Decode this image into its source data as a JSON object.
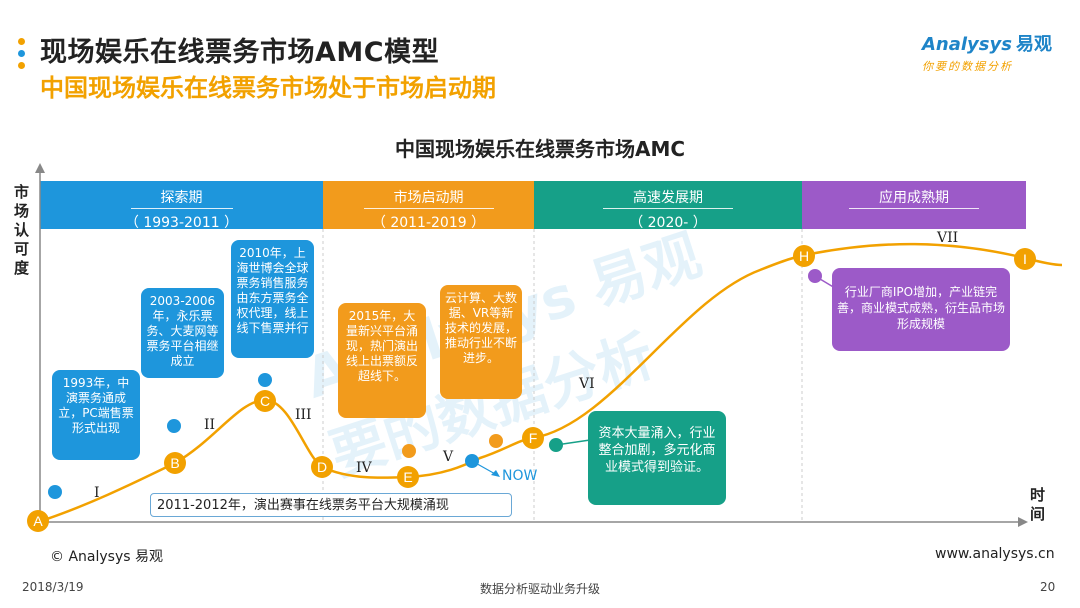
{
  "header": {
    "title": "现场娱乐在线票务市场AMC模型",
    "subtitle": "中国现场娱乐在线票务市场处于市场启动期",
    "logo_en": "Analysys",
    "logo_cn": "易观",
    "logo_tagline": "你要的数据分析",
    "dot_colors": [
      "#f2a100",
      "#1e96dc",
      "#f2a100"
    ]
  },
  "chart": {
    "title": "中国现场娱乐在线票务市场AMC",
    "y_axis_label": "市场认可度",
    "x_axis_label": "时间",
    "phases": [
      {
        "name": "探索期",
        "range": "（ 1993-2011 ）",
        "color": "#1e96dc"
      },
      {
        "name": "市场启动期",
        "range": "（ 2011-2019 ）",
        "color": "#f29b1c"
      },
      {
        "name": "高速发展期",
        "range": "（  2020-  ）",
        "color": "#16a088"
      },
      {
        "name": "应用成熟期",
        "range": "",
        "color": "#9c5ac8"
      }
    ],
    "points": [
      "A",
      "B",
      "C",
      "D",
      "E",
      "F",
      "H",
      "I"
    ],
    "stages": [
      "I",
      "II",
      "III",
      "IV",
      "V",
      "VI",
      "VII"
    ],
    "callouts": [
      {
        "text": "1993年，中演票务通成立，PC端售票形式出现",
        "color": "#1e96dc"
      },
      {
        "text": "2003-2006年，永乐票务、大麦网等票务平台相继成立",
        "color": "#1e96dc"
      },
      {
        "text": "2010年，上海世博会全球票务销售服务由东方票务全权代理，线上线下售票并行",
        "color": "#1e96dc"
      },
      {
        "text": "2015年，大量新兴平台涌现，热门演出线上出票额反超线下。",
        "color": "#f29b1c"
      },
      {
        "text": "云计算、大数据、VR等新技术的发展，推动行业不断进步。",
        "color": "#f29b1c"
      },
      {
        "text": "资本大量涌入，行业整合加剧，多元化商业模式得到验证。",
        "color": "#16a088"
      },
      {
        "text": "行业厂商IPO增加，产业链完善，商业模式成熟，衍生品市场形成规模",
        "color": "#9c5ac8"
      }
    ],
    "note": "2011-2012年，演出赛事在线票务平台大规模涌现",
    "now_label": "NOW",
    "curve_color": "#f2a100"
  },
  "footer": {
    "copyright": "© Analysys 易观",
    "website": "www.analysys.cn",
    "date": "2018/3/19",
    "center_text": "数据分析驱动业务升级",
    "page_number": "20"
  }
}
